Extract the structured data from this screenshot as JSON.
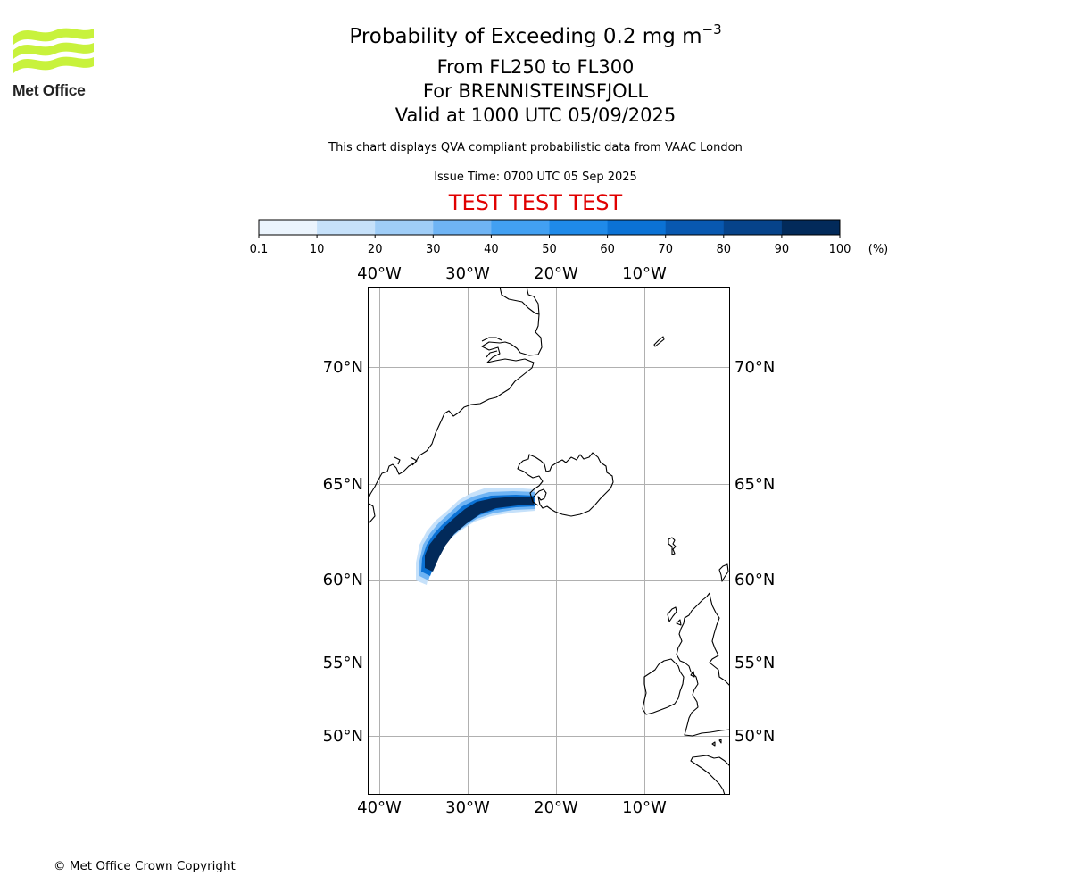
{
  "logo": {
    "text": "Met Office",
    "color": "#c8f23c"
  },
  "title": {
    "line1_prefix": "Probability of Exceeding 0.2 mg m",
    "line1_sup": "−3",
    "line2": "From FL250 to FL300",
    "line3": "For BRENNISTEINSFJOLL",
    "line4": "Valid at 1000 UTC 05/09/2025"
  },
  "subtitle": {
    "description": "This chart displays QVA compliant probabilistic data from VAAC London",
    "issue_time": "Issue Time: 0700 UTC 05 Sep 2025"
  },
  "test_banner": {
    "text": "TEST TEST TEST",
    "color": "#e00000"
  },
  "colorbar": {
    "ticks": [
      "0.1",
      "10",
      "20",
      "30",
      "40",
      "50",
      "60",
      "70",
      "80",
      "90",
      "100"
    ],
    "unit": "(%)",
    "colors": [
      "#ebf4fd",
      "#c6e1fa",
      "#9fcdf7",
      "#6fb4f4",
      "#42a0f2",
      "#1f8ae9",
      "#0b72d5",
      "#0858b0",
      "#06438a",
      "#022a5a"
    ]
  },
  "map": {
    "lon_labels": [
      "40°W",
      "30°W",
      "20°W",
      "10°W"
    ],
    "lat_labels": [
      "70°N",
      "65°N",
      "60°N",
      "55°N",
      "50°N"
    ],
    "extent": {
      "lon": [
        -41.3,
        0.0
      ],
      "lat": [
        46.5,
        73.0
      ]
    },
    "projection": "polar-stereographic (longitude lines straight)",
    "gridlines": true,
    "coastline_color": "#000000"
  },
  "copyright": "© Met Office Crown Copyright"
}
